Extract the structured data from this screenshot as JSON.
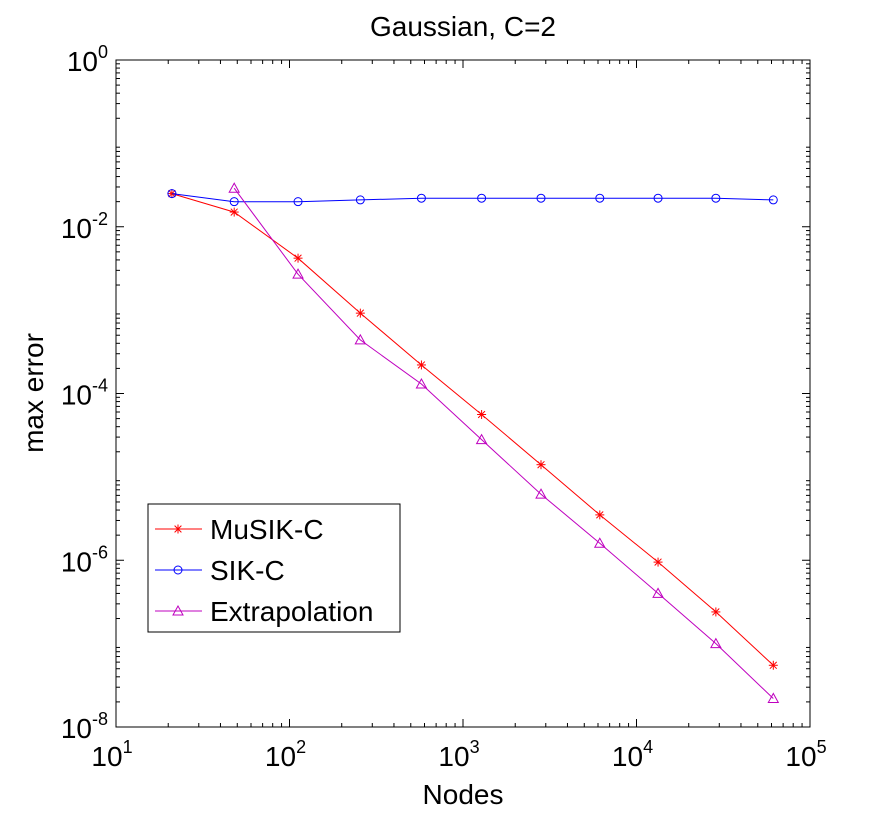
{
  "chart_data": {
    "type": "line",
    "title": "Gaussian, C=2",
    "xlabel": "Nodes",
    "ylabel": "max error",
    "xscale": "log",
    "yscale": "log",
    "xlim": [
      10,
      100000
    ],
    "ylim": [
      1e-08,
      1
    ],
    "grid": false,
    "legend_position": "bottom-left",
    "x_ticks": [
      {
        "base": "10",
        "exp": "1"
      },
      {
        "base": "10",
        "exp": "2"
      },
      {
        "base": "10",
        "exp": "3"
      },
      {
        "base": "10",
        "exp": "4"
      },
      {
        "base": "10",
        "exp": "5"
      }
    ],
    "y_ticks": [
      {
        "base": "10",
        "exp": "0"
      },
      {
        "base": "10",
        "exp": "-2"
      },
      {
        "base": "10",
        "exp": "-4"
      },
      {
        "base": "10",
        "exp": "-6"
      },
      {
        "base": "10",
        "exp": "-8"
      }
    ],
    "x": [
      21,
      48,
      112,
      256,
      576,
      1280,
      2816,
      6144,
      13312,
      28672,
      61440
    ],
    "series": [
      {
        "name": "MuSIK-C",
        "color": "#ff0000",
        "marker": "asterisk",
        "values": [
          0.025,
          0.015,
          0.0042,
          0.00092,
          0.00022,
          5.6e-05,
          1.4e-05,
          3.5e-06,
          9.5e-07,
          2.4e-07,
          5.5e-08
        ]
      },
      {
        "name": "SIK-C",
        "color": "#0000ff",
        "marker": "circle",
        "values": [
          0.025,
          0.02,
          0.02,
          0.021,
          0.022,
          0.022,
          0.022,
          0.022,
          0.022,
          0.022,
          0.021
        ]
      },
      {
        "name": "Extrapolation",
        "color": "#bf00bf",
        "marker": "triangle",
        "x": [
          48,
          112,
          256,
          576,
          1280,
          2816,
          6144,
          13312,
          28672,
          61440
        ],
        "values": [
          0.029,
          0.0027,
          0.00044,
          0.00013,
          2.8e-05,
          6.2e-06,
          1.6e-06,
          4e-07,
          1e-07,
          2.2e-08
        ]
      }
    ]
  }
}
